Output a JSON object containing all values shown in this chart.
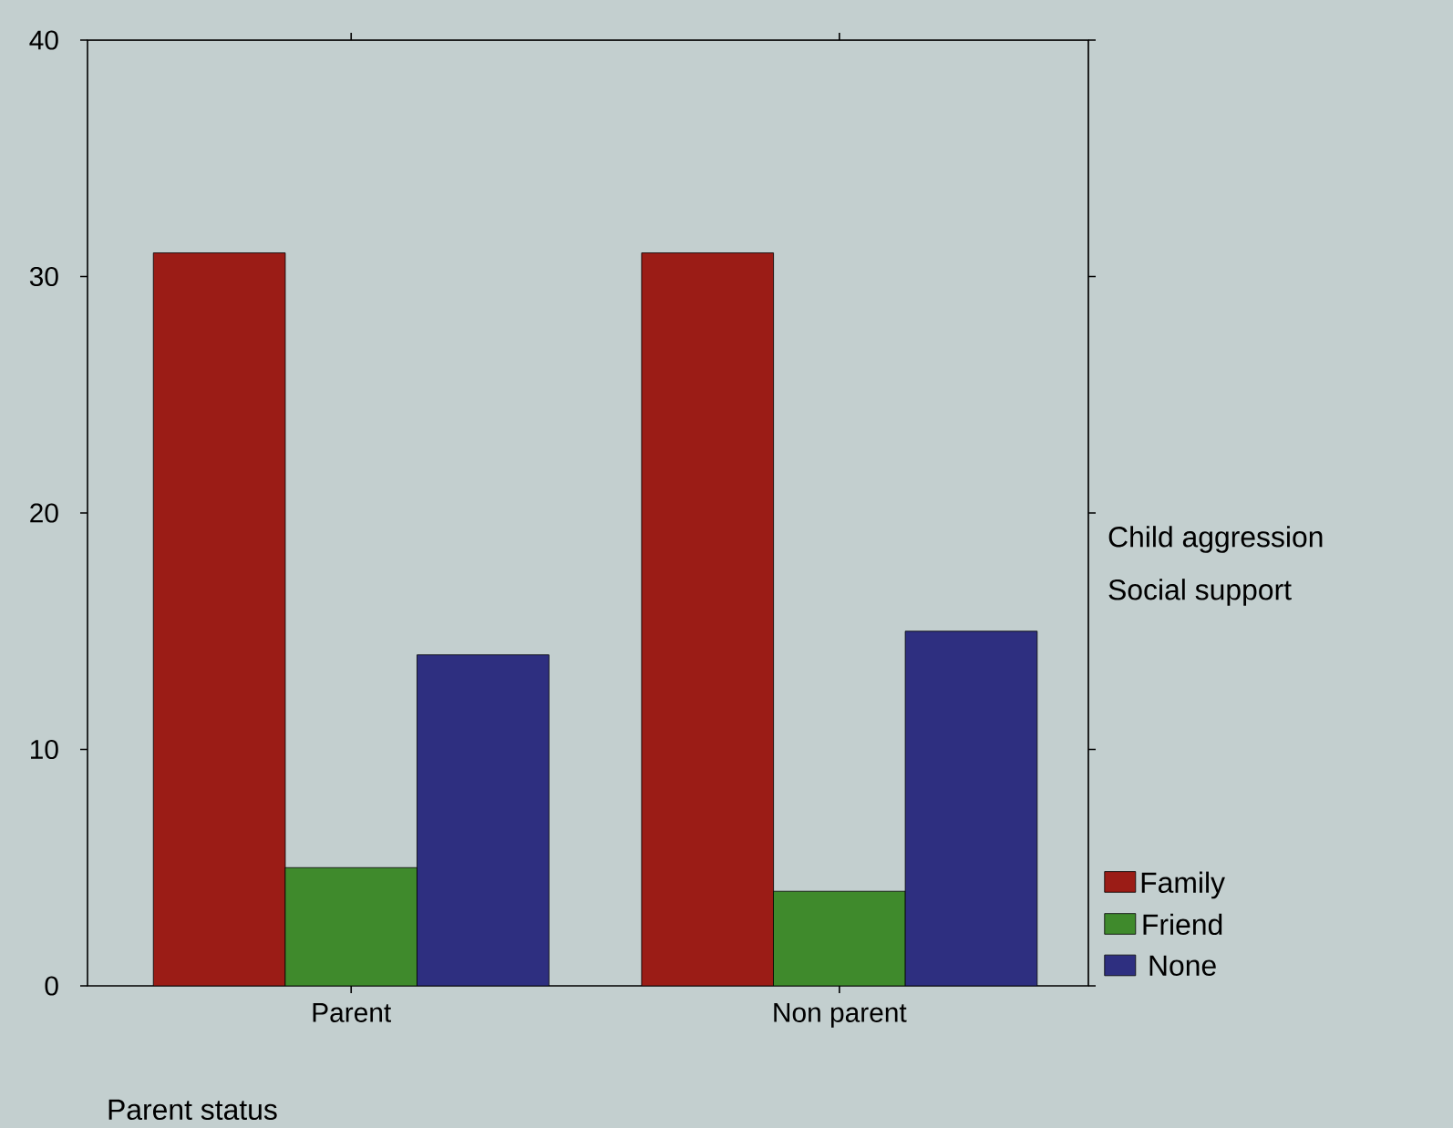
{
  "chart_data": {
    "type": "bar",
    "xlabel": "Parent status",
    "ylabel": "Child aggression",
    "legend_title": "Social support",
    "categories": [
      "Parent",
      "Non parent"
    ],
    "series": [
      {
        "name": "Family",
        "color": "#9b1c16",
        "values": [
          31,
          31
        ]
      },
      {
        "name": "Friend",
        "color": "#3f8a2c",
        "values": [
          5,
          4
        ]
      },
      {
        "name": "None",
        "color": "#2e2f80",
        "values": [
          14,
          15
        ]
      }
    ],
    "ylim": [
      0,
      40
    ],
    "yticks": [
      0,
      10,
      20,
      30,
      40
    ],
    "grid": false,
    "legend": "right"
  }
}
